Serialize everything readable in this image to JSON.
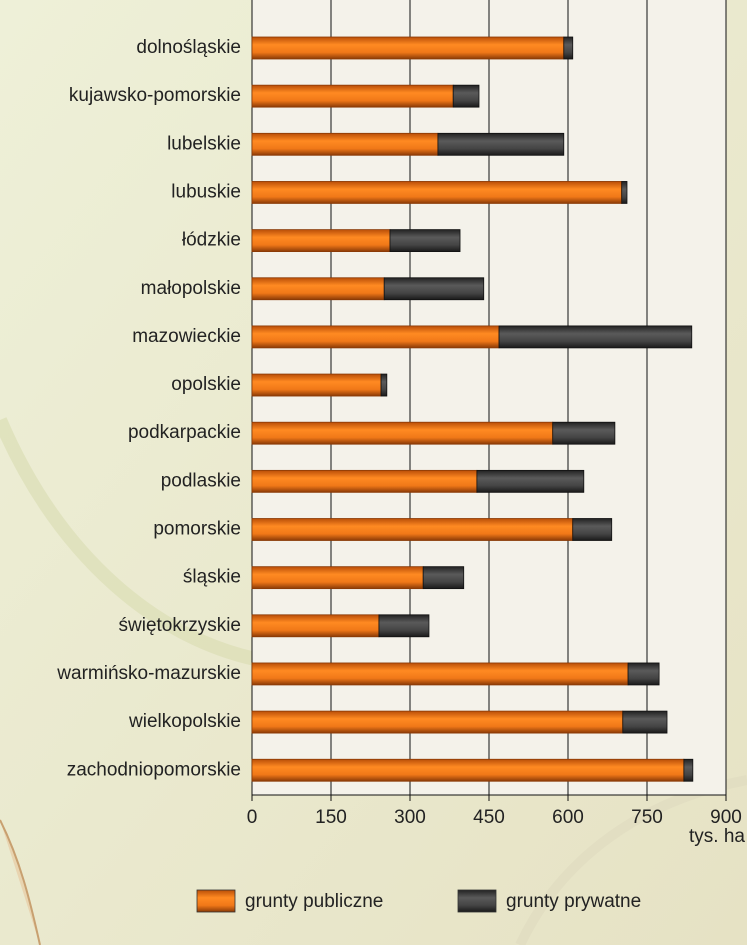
{
  "chart_data": {
    "type": "stacked-hbar",
    "categories": [
      "dolnośląskie",
      "kujawsko-pomorskie",
      "lubelskie",
      "lubuskie",
      "łódzkie",
      "małopolskie",
      "mazowieckie",
      "opolskie",
      "podkarpackie",
      "podlaskie",
      "pomorskie",
      "śląskie",
      "świętokrzyskie",
      "warmińsko-mazurskie",
      "wielkopolskie",
      "zachodniopomorskie"
    ],
    "series": [
      {
        "name": "grunty publiczne",
        "color": "#f07818",
        "values": [
          592,
          382,
          353,
          702,
          262,
          251,
          469,
          245,
          571,
          427,
          609,
          325,
          241,
          714,
          704,
          820
        ]
      },
      {
        "name": "grunty prywatne",
        "color": "#4a4a4a",
        "values": [
          17,
          49,
          239,
          10,
          133,
          189,
          366,
          11,
          118,
          203,
          74,
          77,
          95,
          59,
          84,
          17
        ]
      }
    ],
    "xlim": [
      0,
      900
    ],
    "xticks": [
      0,
      150,
      300,
      450,
      600,
      750,
      900
    ],
    "x_label": "tys. ha",
    "grid": true
  }
}
